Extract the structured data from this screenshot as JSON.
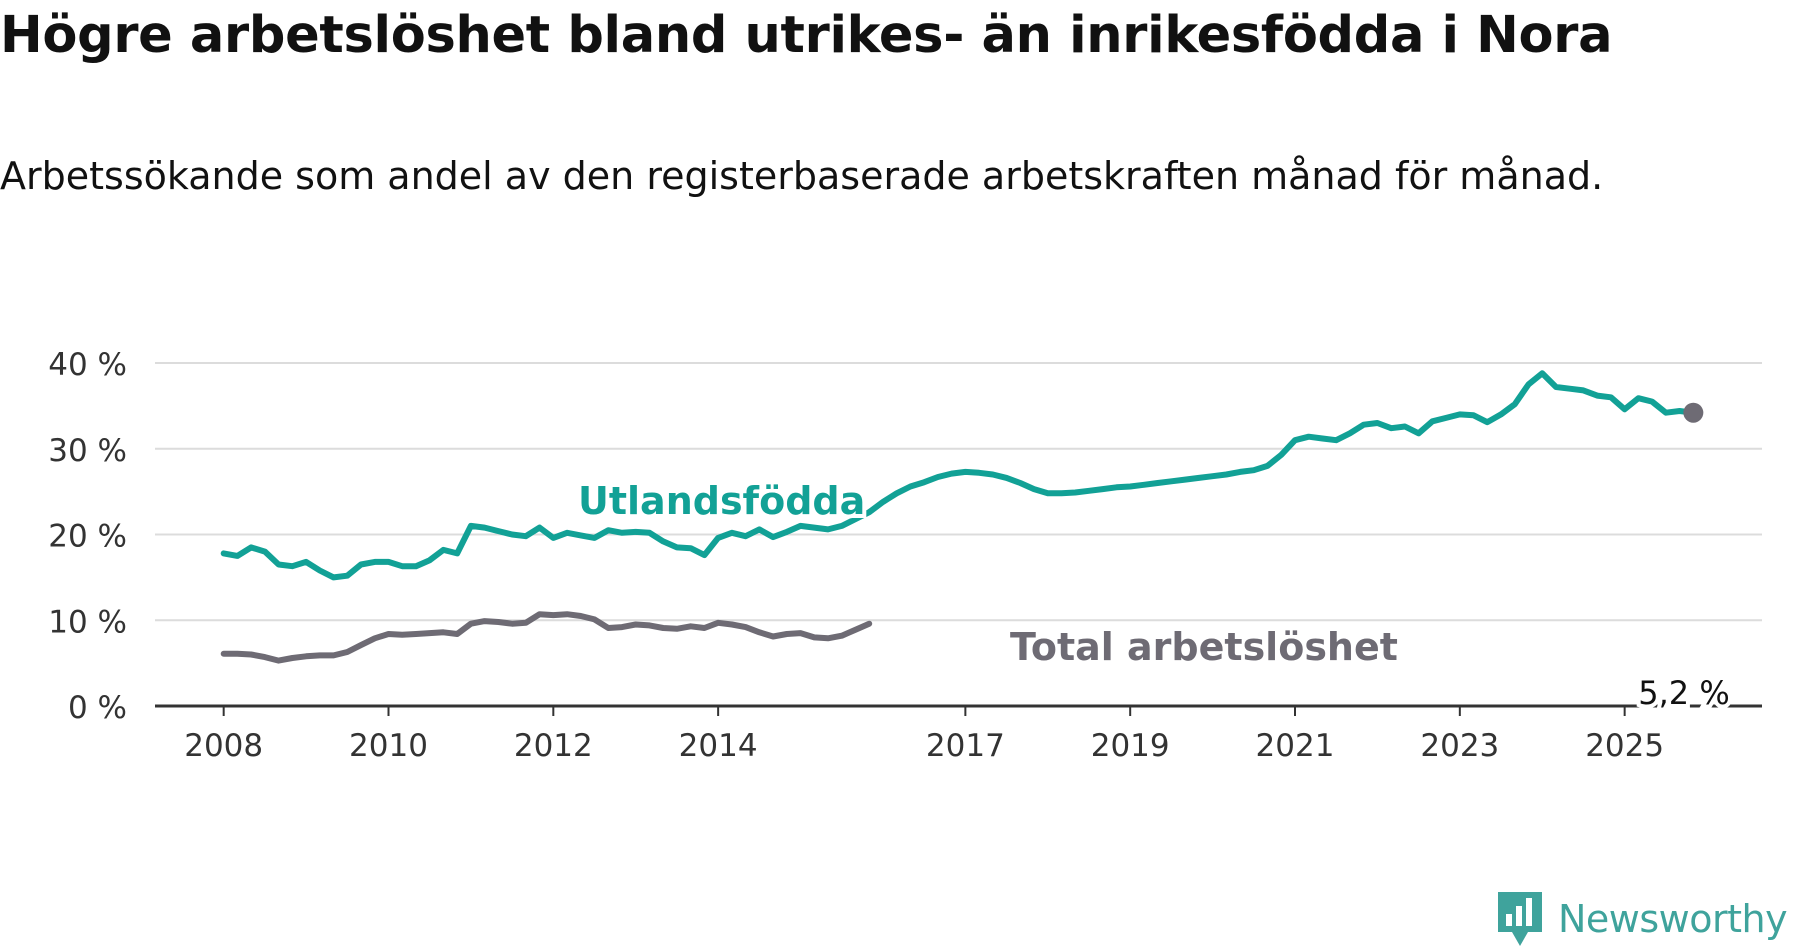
{
  "title": "Högre arbetslöshet bland utrikes- än inrikesfödda i Nora",
  "subtitle": "Arbetssökande som andel av den registerbaserade arbetskraften månad för månad.",
  "brand": {
    "name": "Newsworthy",
    "icon": "newsworthy-logo-icon",
    "color": "#3fa39c"
  },
  "chart_data": {
    "type": "line",
    "title": "Högre arbetslöshet bland utrikes- än inrikesfödda i Nora",
    "subtitle": "Arbetssökande som andel av den registerbaserade arbetskraften månad för månad.",
    "xlabel": "",
    "ylabel": "",
    "x_ticks": [
      "2008",
      "2010",
      "2012",
      "2014",
      "2017",
      "2019",
      "2021",
      "2023",
      "2025"
    ],
    "y_ticks": [
      "0 %",
      "10 %",
      "20 %",
      "30 %",
      "40 %"
    ],
    "ylim": [
      0,
      40
    ],
    "xlim": [
      "2007-03",
      "2026-09"
    ],
    "grid": "horizontal",
    "legend": "inline labels",
    "end_label": "5,2 %",
    "series": [
      {
        "name": "Utlandsfödda",
        "color": "#12a196",
        "points": [
          [
            "2008-01",
            17.8
          ],
          [
            "2008-03",
            17.5
          ],
          [
            "2008-05",
            18.5
          ],
          [
            "2008-07",
            18.0
          ],
          [
            "2008-09",
            16.5
          ],
          [
            "2008-11",
            16.3
          ],
          [
            "2009-01",
            16.8
          ],
          [
            "2009-03",
            15.8
          ],
          [
            "2009-05",
            15.0
          ],
          [
            "2009-07",
            15.2
          ],
          [
            "2009-09",
            16.5
          ],
          [
            "2009-11",
            16.8
          ],
          [
            "2010-01",
            16.8
          ],
          [
            "2010-03",
            16.3
          ],
          [
            "2010-05",
            16.3
          ],
          [
            "2010-07",
            17.0
          ],
          [
            "2010-09",
            18.2
          ],
          [
            "2010-11",
            17.8
          ],
          [
            "2011-01",
            21.0
          ],
          [
            "2011-03",
            20.8
          ],
          [
            "2011-05",
            20.4
          ],
          [
            "2011-07",
            20.0
          ],
          [
            "2011-09",
            19.8
          ],
          [
            "2011-11",
            20.8
          ],
          [
            "2012-01",
            19.6
          ],
          [
            "2012-03",
            20.2
          ],
          [
            "2012-05",
            19.9
          ],
          [
            "2012-07",
            19.6
          ],
          [
            "2012-09",
            20.5
          ],
          [
            "2012-11",
            20.2
          ],
          [
            "2013-01",
            20.3
          ],
          [
            "2013-03",
            20.2
          ],
          [
            "2013-05",
            19.2
          ],
          [
            "2013-07",
            18.5
          ],
          [
            "2013-09",
            18.4
          ],
          [
            "2013-11",
            17.6
          ],
          [
            "2014-01",
            19.6
          ],
          [
            "2014-03",
            20.2
          ],
          [
            "2014-05",
            19.8
          ],
          [
            "2014-07",
            20.6
          ],
          [
            "2014-09",
            19.7
          ],
          [
            "2014-11",
            20.3
          ],
          [
            "2015-01",
            21.0
          ],
          [
            "2015-03",
            20.8
          ],
          [
            "2015-05",
            20.6
          ],
          [
            "2015-07",
            21.0
          ],
          [
            "2015-09",
            21.8
          ],
          [
            "2015-11",
            22.6
          ],
          [
            "2016-01",
            23.8
          ],
          [
            "2016-03",
            24.8
          ],
          [
            "2016-05",
            25.6
          ],
          [
            "2016-07",
            26.1
          ],
          [
            "2016-09",
            26.7
          ],
          [
            "2016-11",
            27.1
          ],
          [
            "2017-01",
            27.3
          ],
          [
            "2017-03",
            27.2
          ],
          [
            "2017-05",
            27.0
          ],
          [
            "2017-07",
            26.6
          ],
          [
            "2017-09",
            26.0
          ],
          [
            "2017-11",
            25.3
          ],
          [
            "2018-01",
            24.8
          ],
          [
            "2018-03",
            24.8
          ],
          [
            "2018-05",
            24.9
          ],
          [
            "2018-07",
            25.1
          ],
          [
            "2018-09",
            25.3
          ],
          [
            "2018-11",
            25.5
          ],
          [
            "2019-01",
            25.6
          ],
          [
            "2019-03",
            25.8
          ],
          [
            "2019-05",
            26.0
          ],
          [
            "2019-07",
            26.2
          ],
          [
            "2019-09",
            26.4
          ],
          [
            "2019-11",
            26.6
          ],
          [
            "2020-01",
            26.8
          ],
          [
            "2020-03",
            27.0
          ],
          [
            "2020-05",
            27.3
          ],
          [
            "2020-07",
            27.5
          ],
          [
            "2020-09",
            28.0
          ],
          [
            "2020-11",
            29.3
          ],
          [
            "2021-01",
            31.0
          ],
          [
            "2021-03",
            31.4
          ],
          [
            "2021-05",
            31.2
          ],
          [
            "2021-07",
            31.0
          ],
          [
            "2021-09",
            31.8
          ],
          [
            "2021-11",
            32.8
          ],
          [
            "2022-01",
            33.0
          ],
          [
            "2022-03",
            32.4
          ],
          [
            "2022-05",
            32.6
          ],
          [
            "2022-07",
            31.8
          ],
          [
            "2022-09",
            33.2
          ],
          [
            "2022-11",
            33.6
          ],
          [
            "2023-01",
            34.0
          ],
          [
            "2023-03",
            33.9
          ],
          [
            "2023-05",
            33.1
          ],
          [
            "2023-07",
            34.0
          ],
          [
            "2023-09",
            35.2
          ],
          [
            "2023-11",
            37.5
          ],
          [
            "2024-01",
            38.8
          ],
          [
            "2024-03",
            37.2
          ],
          [
            "2024-05",
            37.0
          ],
          [
            "2024-07",
            36.8
          ],
          [
            "2024-09",
            36.2
          ],
          [
            "2024-11",
            36.0
          ],
          [
            "2025-01",
            34.6
          ],
          [
            "2025-03",
            35.9
          ],
          [
            "2025-05",
            35.5
          ],
          [
            "2025-07",
            34.2
          ],
          [
            "2025-09",
            34.4
          ],
          [
            "2025-11",
            34.2
          ]
        ]
      },
      {
        "name": "Total arbetslöshet",
        "color": "#6e6b74",
        "points": [
          [
            "2008-01",
            6.1
          ],
          [
            "2008-03",
            6.1
          ],
          [
            "2008-05",
            6.0
          ],
          [
            "2008-07",
            5.7
          ],
          [
            "2008-09",
            5.3
          ],
          [
            "2008-11",
            5.6
          ],
          [
            "2009-01",
            5.8
          ],
          [
            "2009-03",
            5.9
          ],
          [
            "2009-05",
            5.9
          ],
          [
            "2009-07",
            6.3
          ],
          [
            "2009-09",
            7.1
          ],
          [
            "2009-11",
            7.9
          ],
          [
            "2010-01",
            8.4
          ],
          [
            "2010-03",
            8.3
          ],
          [
            "2010-05",
            8.4
          ],
          [
            "2010-07",
            8.5
          ],
          [
            "2010-09",
            8.6
          ],
          [
            "2010-11",
            8.4
          ],
          [
            "2011-01",
            9.6
          ],
          [
            "2011-03",
            9.9
          ],
          [
            "2011-05",
            9.8
          ],
          [
            "2011-07",
            9.6
          ],
          [
            "2011-09",
            9.7
          ],
          [
            "2011-11",
            10.7
          ],
          [
            "2012-01",
            10.6
          ],
          [
            "2012-03",
            10.7
          ],
          [
            "2012-05",
            10.5
          ],
          [
            "2012-07",
            10.1
          ],
          [
            "2012-09",
            9.1
          ],
          [
            "2012-11",
            9.2
          ],
          [
            "2013-01",
            9.5
          ],
          [
            "2013-03",
            9.4
          ],
          [
            "2013-05",
            9.1
          ],
          [
            "2013-07",
            9.0
          ],
          [
            "2013-09",
            9.3
          ],
          [
            "2013-11",
            9.1
          ],
          [
            "2014-01",
            9.7
          ],
          [
            "2014-03",
            9.5
          ],
          [
            "2014-05",
            9.2
          ],
          [
            "2014-07",
            8.6
          ],
          [
            "2014-09",
            8.1
          ],
          [
            "2014-11",
            8.4
          ],
          [
            "2015-01",
            8.5
          ],
          [
            "2015-03",
            8.0
          ],
          [
            "2015-05",
            7.9
          ],
          [
            "2015-07",
            8.2
          ],
          [
            "2015-09",
            8.9
          ],
          [
            "2015-11",
            9.6
          ]
        ]
      }
    ]
  }
}
